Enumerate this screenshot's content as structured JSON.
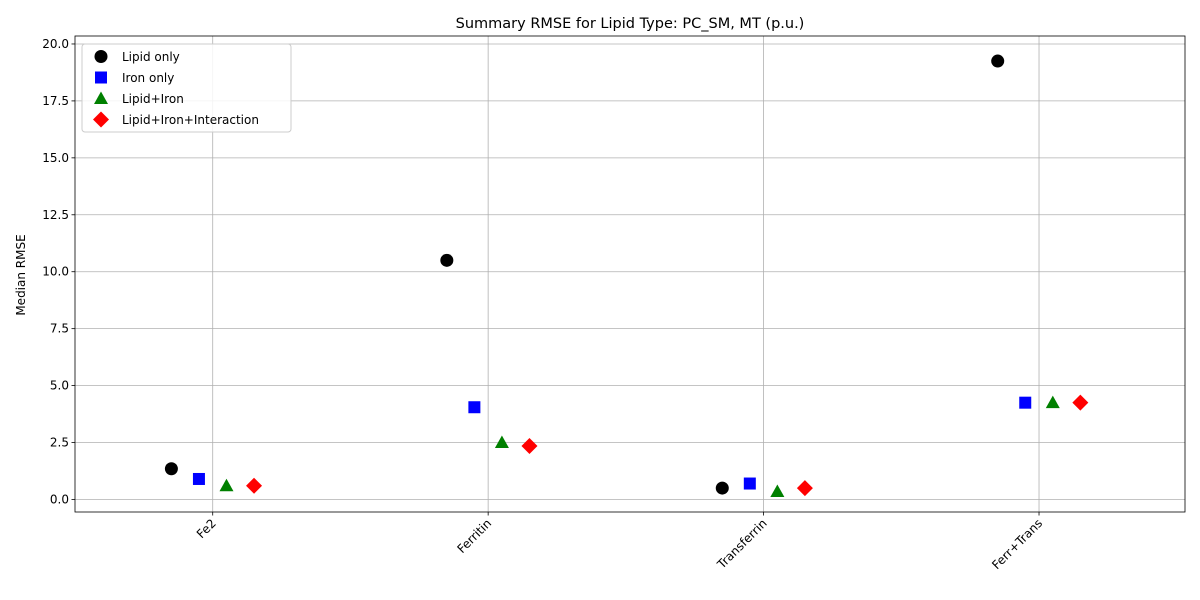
{
  "chart_data": {
    "type": "scatter",
    "title": "Summary RMSE for Lipid Type: PC_SM, MT (p.u.)",
    "xlabel": "",
    "ylabel": "Median RMSE",
    "categories": [
      "Fe2",
      "Ferritin",
      "Transferrin",
      "Ferr+Trans"
    ],
    "ylim": [
      -0.55,
      20.35
    ],
    "yticks": [
      0.0,
      2.5,
      5.0,
      7.5,
      10.0,
      12.5,
      15.0,
      17.5,
      20.0
    ],
    "ytick_labels": [
      "0.0",
      "2.5",
      "5.0",
      "7.5",
      "10.0",
      "12.5",
      "15.0",
      "17.5",
      "20.0"
    ],
    "grid": true,
    "legend_position": "top-left",
    "series": [
      {
        "name": "Lipid only",
        "marker": "circle",
        "color": "#000000",
        "values": [
          1.35,
          10.5,
          0.5,
          19.25
        ]
      },
      {
        "name": "Iron only",
        "marker": "square",
        "color": "#0000ff",
        "values": [
          0.9,
          4.05,
          0.7,
          4.25
        ]
      },
      {
        "name": "Lipid+Iron",
        "marker": "triangle",
        "color": "#008000",
        "values": [
          0.6,
          2.5,
          0.35,
          4.25
        ]
      },
      {
        "name": "Lipid+Iron+Interaction",
        "marker": "diamond",
        "color": "#ff0000",
        "values": [
          0.6,
          2.35,
          0.5,
          4.25
        ]
      }
    ]
  }
}
